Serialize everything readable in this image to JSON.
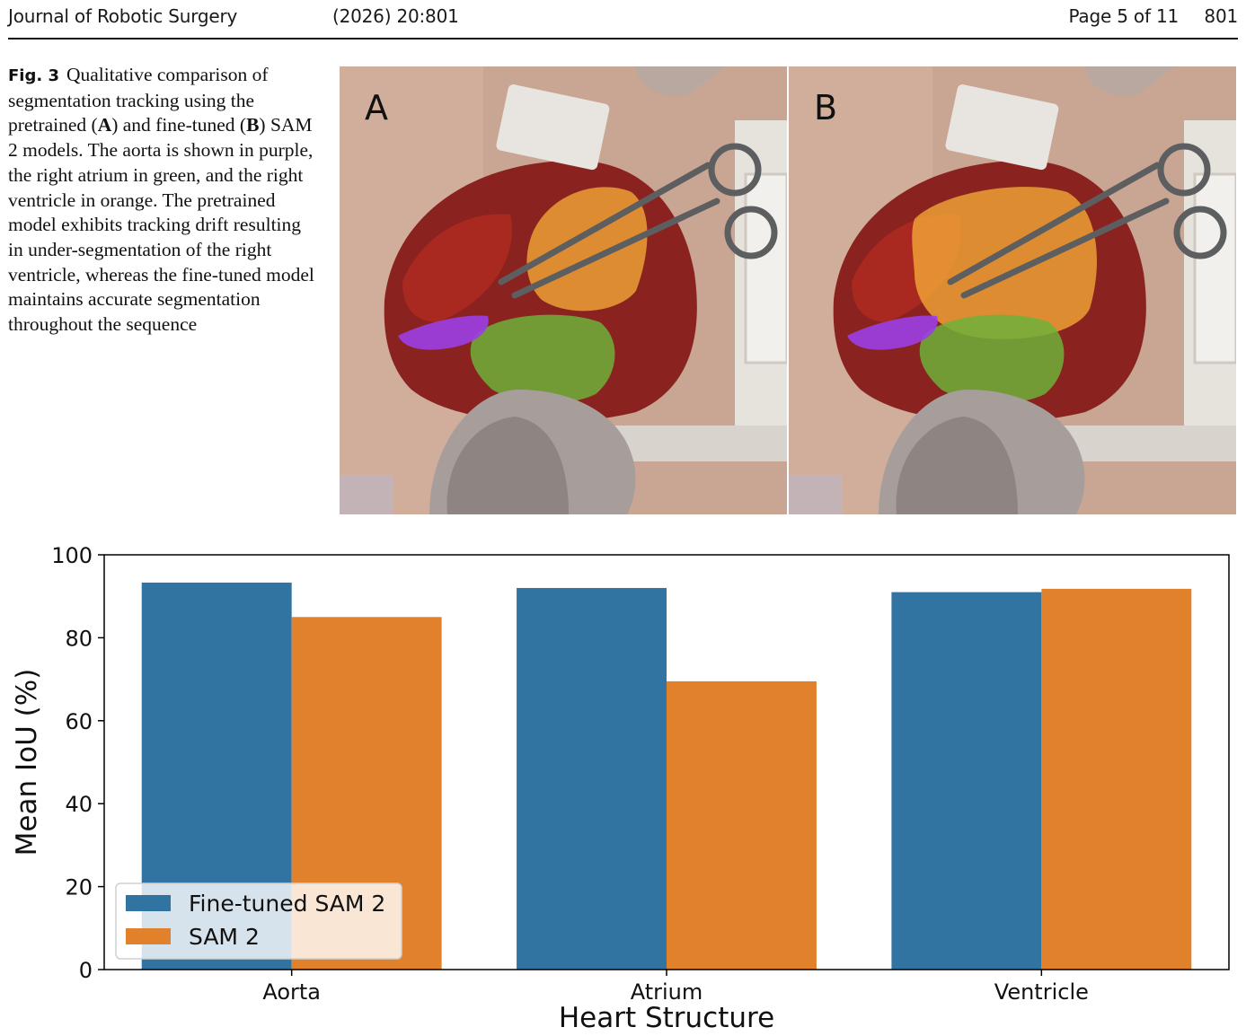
{
  "header": {
    "journal": "Journal of Robotic Surgery",
    "volume": "(2026)  20:801",
    "page": "Page 5 of 11",
    "number": "801"
  },
  "caption": {
    "label": "Fig. 3",
    "text_1": "Qualitative comparison of segmentation tracking using the pretrained (",
    "a": "A",
    "text_2": ") and fine-tuned (",
    "b": "B",
    "text_3": ") SAM 2 models. The aorta is shown in purple, the right atrium in green, and the right ventricle in orange. The pretrained model exhibits tracking drift resulting in under-segmentation of the right ventricle, whereas the fine-tuned model maintains accurate segmentation throughout the sequence"
  },
  "figure": {
    "panel_a": "A",
    "panel_b": "B",
    "colors": {
      "aorta": "#9b3ee6",
      "right_atrium": "#6fb03a",
      "right_ventricle": "#f0a437",
      "tissue": "#8a2320",
      "skin": "#c9a593"
    }
  },
  "chart_data": {
    "type": "bar",
    "categories": [
      "Aorta",
      "Atrium",
      "Ventricle"
    ],
    "series": [
      {
        "name": "Fine-tuned SAM 2",
        "color": "#3274a1",
        "values": [
          93.3,
          92.0,
          91.0
        ]
      },
      {
        "name": "SAM 2",
        "color": "#e1812c",
        "values": [
          85.0,
          69.5,
          91.8
        ]
      }
    ],
    "xlabel": "Heart Structure",
    "ylabel": "Mean IoU (%)",
    "ylim": [
      0,
      100
    ],
    "yticks": [
      "0",
      "20",
      "40",
      "60",
      "80",
      "100"
    ],
    "grid": false,
    "legend_position": "lower-left"
  }
}
